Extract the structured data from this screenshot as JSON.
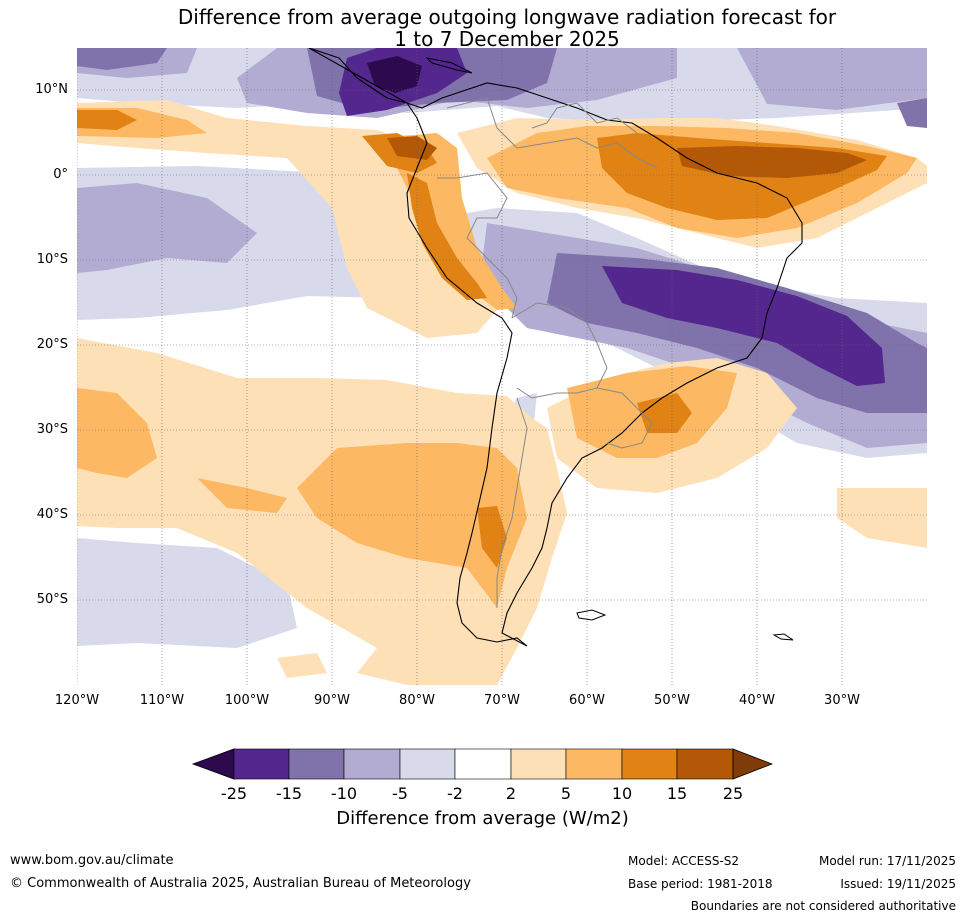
{
  "title": {
    "line1": "Difference from average outgoing longwave radiation forecast for",
    "line2": "1 to 7 December 2025"
  },
  "map": {
    "lat_labels": [
      "10°N",
      "0°",
      "10°S",
      "20°S",
      "30°S",
      "40°S",
      "50°S"
    ],
    "lon_labels": [
      "120°W",
      "110°W",
      "100°W",
      "90°W",
      "80°W",
      "70°W",
      "60°W",
      "50°W",
      "40°W",
      "30°W"
    ]
  },
  "colorbar": {
    "title": "Difference from average (W/m2)",
    "ticks": [
      "-25",
      "-15",
      "-10",
      "-5",
      "-2",
      "2",
      "5",
      "10",
      "15",
      "25"
    ],
    "colors": {
      "under": "#2d0a4e",
      "c1": "#54278f",
      "c2": "#8073ac",
      "c3": "#b2abd2",
      "c4": "#d8daeb",
      "c5": "#ffffff",
      "c6": "#fee0b6",
      "c7": "#fdb863",
      "c8": "#e08214",
      "c9": "#b35806",
      "over": "#7f3b08"
    }
  },
  "footer": {
    "website": "www.bom.gov.au/climate",
    "copyright": "© Commonwealth of Australia 2025, Australian Bureau of Meteorology",
    "model": "Model: ACCESS-S2",
    "base_period": "Base period: 1981-2018",
    "model_run": "Model run: 17/11/2025",
    "issued": "Issued: 19/11/2025",
    "disclaimer": "Boundaries are not considered authoritative"
  }
}
